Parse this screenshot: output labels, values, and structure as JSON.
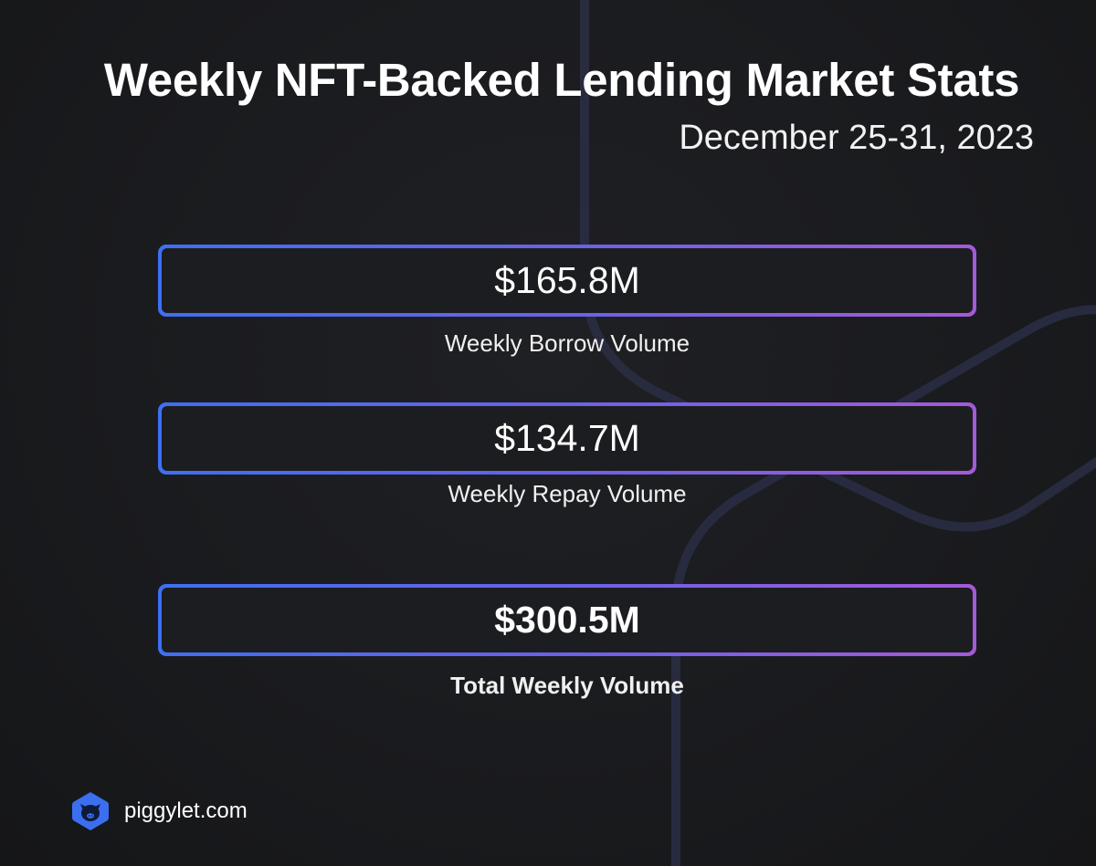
{
  "header": {
    "title": "Weekly NFT-Backed Lending Market Stats",
    "date_range": "December 25-31, 2023"
  },
  "stats": [
    {
      "value": "$165.8M",
      "label": "Weekly Borrow Volume"
    },
    {
      "value": "$134.7M",
      "label": "Weekly Repay Volume"
    },
    {
      "value": "$300.5M",
      "label": "Total Weekly Volume"
    }
  ],
  "footer": {
    "logo_icon": "piggy-hexagon-icon",
    "brand": "piggylet.com"
  },
  "colors": {
    "background": "#1a1b1e",
    "gradient_start": "#3f6ff2",
    "gradient_end": "#a35ad8",
    "text": "#ffffff"
  }
}
